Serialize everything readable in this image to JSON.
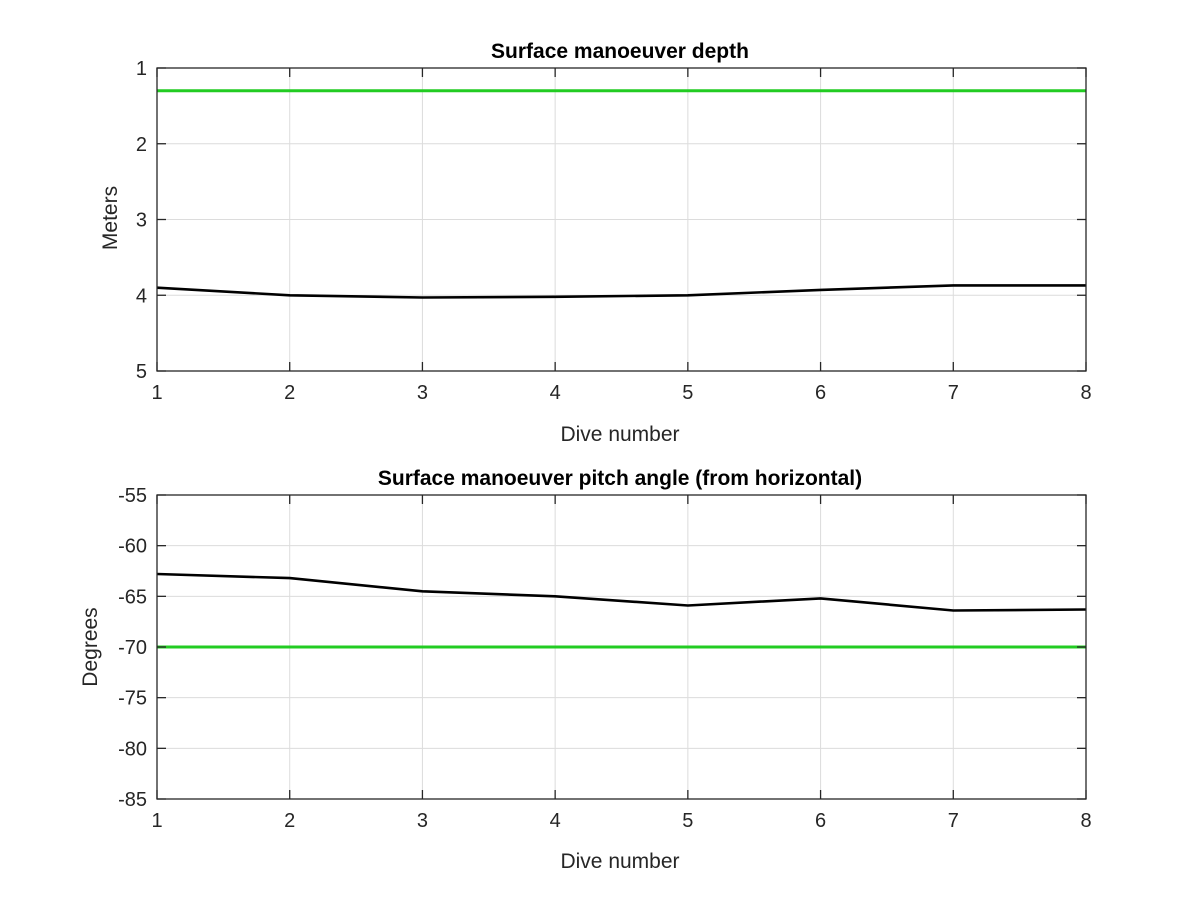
{
  "chart_data": [
    {
      "type": "line",
      "title": "Surface manoeuver depth",
      "xlabel": "Dive number",
      "ylabel": "Meters",
      "xlim": [
        1,
        8
      ],
      "ylim": [
        1,
        5
      ],
      "y_reversed": true,
      "grid": true,
      "x_ticks": [
        1,
        2,
        3,
        4,
        5,
        6,
        7,
        8
      ],
      "y_ticks": [
        1,
        2,
        3,
        4,
        5
      ],
      "series": [
        {
          "color": "#000000",
          "x": [
            1,
            2,
            3,
            4,
            5,
            6,
            7,
            8
          ],
          "y": [
            3.9,
            4.0,
            4.03,
            4.02,
            4.0,
            3.93,
            3.87,
            3.87
          ]
        }
      ],
      "reference_line": {
        "y": 1.3,
        "color": "#22cc22"
      }
    },
    {
      "type": "line",
      "title": "Surface manoeuver pitch angle (from horizontal)",
      "xlabel": "Dive number",
      "ylabel": "Degrees",
      "xlim": [
        1,
        8
      ],
      "ylim": [
        -85,
        -55
      ],
      "y_reversed": false,
      "grid": true,
      "x_ticks": [
        1,
        2,
        3,
        4,
        5,
        6,
        7,
        8
      ],
      "y_ticks": [
        -55,
        -60,
        -65,
        -70,
        -75,
        -80,
        -85
      ],
      "series": [
        {
          "color": "#000000",
          "x": [
            1,
            2,
            3,
            4,
            5,
            6,
            7,
            8
          ],
          "y": [
            -62.8,
            -63.2,
            -64.5,
            -65.0,
            -65.9,
            -65.2,
            -66.4,
            -66.3
          ]
        }
      ],
      "reference_line": {
        "y": -70,
        "color": "#22cc22"
      }
    }
  ]
}
